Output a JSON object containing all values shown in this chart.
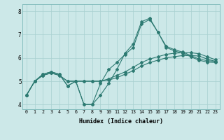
{
  "xlabel": "Humidex (Indice chaleur)",
  "ylabel": "",
  "bg_color": "#cce8e8",
  "line_color": "#2d7a72",
  "grid_color": "#a8d0d0",
  "xlim": [
    -0.5,
    23.5
  ],
  "ylim": [
    3.8,
    8.3
  ],
  "yticks": [
    4,
    5,
    6,
    7,
    8
  ],
  "xticks": [
    0,
    1,
    2,
    3,
    4,
    5,
    6,
    7,
    8,
    9,
    10,
    11,
    12,
    13,
    14,
    15,
    16,
    17,
    18,
    19,
    20,
    21,
    22,
    23
  ],
  "series": [
    [
      4.4,
      5.0,
      5.3,
      5.4,
      5.3,
      4.8,
      5.0,
      4.0,
      4.0,
      4.4,
      4.9,
      5.5,
      6.2,
      6.6,
      7.55,
      7.7,
      7.1,
      6.5,
      6.35,
      6.25,
      6.1,
      5.95,
      5.88,
      5.85
    ],
    [
      4.4,
      5.0,
      5.3,
      5.4,
      5.3,
      4.8,
      5.0,
      4.0,
      4.0,
      4.9,
      5.5,
      5.8,
      6.15,
      6.45,
      7.45,
      7.65,
      7.1,
      6.45,
      6.3,
      6.2,
      6.05,
      5.9,
      5.82,
      5.8
    ],
    [
      4.4,
      5.0,
      5.25,
      5.35,
      5.25,
      5.0,
      5.0,
      5.0,
      5.0,
      5.0,
      5.05,
      5.15,
      5.3,
      5.45,
      5.65,
      5.8,
      5.9,
      6.0,
      6.05,
      6.1,
      6.1,
      6.08,
      5.95,
      5.85
    ],
    [
      4.4,
      5.0,
      5.25,
      5.35,
      5.25,
      5.0,
      5.0,
      5.0,
      5.0,
      5.0,
      5.1,
      5.25,
      5.4,
      5.6,
      5.8,
      5.95,
      6.05,
      6.15,
      6.2,
      6.22,
      6.22,
      6.18,
      6.05,
      5.92
    ]
  ]
}
